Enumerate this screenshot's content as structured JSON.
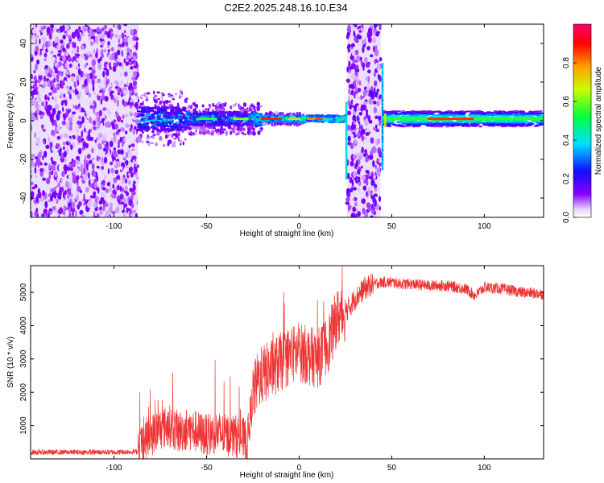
{
  "title": "C2E2.2025.248.16.10.E34",
  "chart_data": [
    {
      "type": "heatmap",
      "name": "spectrogram",
      "xlabel": "Height of straight line (km)",
      "ylabel": "Frequency (Hz)",
      "xlim": [
        -145,
        132
      ],
      "ylim": [
        -50,
        50
      ],
      "xticks": [
        -100,
        -50,
        0,
        50,
        100
      ],
      "yticks": [
        -40,
        -20,
        0,
        20,
        40
      ],
      "colorbar": {
        "label": "Normalized spectral amplitude",
        "range": [
          0,
          1
        ],
        "ticks": [
          0.0,
          0.2,
          0.4,
          0.6,
          0.8
        ],
        "colors": [
          "#ffffff",
          "#7a00ff",
          "#0000ff",
          "#00ffff",
          "#00ff00",
          "#ffff00",
          "#ff0000",
          "#ff0080"
        ]
      },
      "regions": [
        {
          "x": [
            -145,
            -87
          ],
          "freq": [
            -50,
            50
          ],
          "level": 0.12,
          "kind": "broadband noise"
        },
        {
          "x": [
            -87,
            -20
          ],
          "freq": [
            -8,
            10
          ],
          "level": 0.35,
          "kind": "carrier with scatter"
        },
        {
          "x": [
            -20,
            25
          ],
          "freq": [
            -2,
            3
          ],
          "level": 0.45,
          "kind": "carrier"
        },
        {
          "x": [
            26,
            44
          ],
          "freq": [
            -50,
            50
          ],
          "level": 0.14,
          "kind": "broadband noise"
        },
        {
          "x": [
            46,
            132
          ],
          "freq": [
            -2,
            4
          ],
          "level": 0.6,
          "kind": "carrier"
        }
      ]
    },
    {
      "type": "line",
      "name": "snr",
      "xlabel": "Height of straight line (km)",
      "ylabel": "SNR (10 * v/v)",
      "xlim": [
        -145,
        132
      ],
      "ylim": [
        0,
        5800
      ],
      "xticks": [
        -100,
        -50,
        0,
        50,
        100
      ],
      "yticks": [
        1000,
        2000,
        3000,
        4000,
        5000
      ],
      "color": "#ee3333",
      "series": [
        {
          "name": "SNR",
          "x": [
            -145,
            -120,
            -100,
            -87,
            -85,
            -80,
            -75,
            -70,
            -65,
            -60,
            -55,
            -50,
            -45,
            -40,
            -35,
            -30,
            -28,
            -25,
            -22,
            -20,
            -15,
            -10,
            -5,
            0,
            5,
            10,
            15,
            18,
            20,
            25,
            30,
            35,
            40,
            45,
            50,
            55,
            60,
            70,
            80,
            90,
            95,
            100,
            110,
            120,
            132
          ],
          "y": [
            200,
            200,
            200,
            220,
            500,
            700,
            900,
            1000,
            800,
            900,
            800,
            700,
            800,
            700,
            700,
            600,
            500,
            1900,
            2400,
            2500,
            2700,
            2900,
            3100,
            3200,
            3100,
            3000,
            3400,
            3800,
            4200,
            4400,
            4800,
            5100,
            5250,
            5300,
            5300,
            5250,
            5250,
            5200,
            5200,
            5100,
            4900,
            5150,
            5100,
            5000,
            4950
          ]
        }
      ]
    }
  ]
}
